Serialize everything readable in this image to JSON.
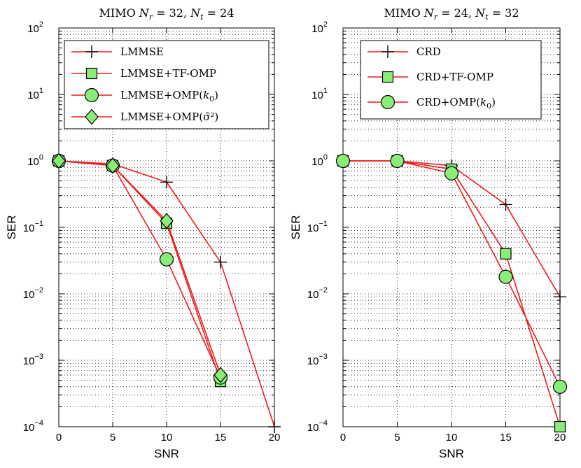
{
  "chart_data": [
    {
      "type": "line",
      "title": "MIMO N_r = 32,  N_t = 24",
      "title_parts": {
        "prefix": "MIMO",
        "nr_label": "N",
        "nr_sub": "r",
        "nr_value": "= 32,",
        "nt_label": "N",
        "nt_sub": "t",
        "nt_value": "= 24"
      },
      "xlabel": "SNR",
      "ylabel": "SER",
      "yscale": "log",
      "xlim": [
        0,
        20
      ],
      "ylim": [
        0.0001,
        100
      ],
      "xticks": [
        0,
        5,
        10,
        15,
        20
      ],
      "yticks": [
        0.0001,
        0.001,
        0.01,
        0.1,
        1,
        10,
        100
      ],
      "ytick_labels": [
        {
          "base": "10",
          "exp": "−4"
        },
        {
          "base": "10",
          "exp": "−3"
        },
        {
          "base": "10",
          "exp": "−2"
        },
        {
          "base": "10",
          "exp": "−1"
        },
        {
          "base": "10",
          "exp": "0"
        },
        {
          "base": "10",
          "exp": "1"
        },
        {
          "base": "10",
          "exp": "2"
        }
      ],
      "grid": true,
      "legend_position": "top",
      "series": [
        {
          "name": "LMMSE",
          "marker": "plus",
          "x": [
            0,
            5,
            10,
            15,
            20
          ],
          "y": [
            1,
            0.9,
            0.48,
            0.03,
            0.0001
          ]
        },
        {
          "name": "LMMSE+TF-OMP",
          "marker": "square",
          "x": [
            0,
            5,
            10,
            15
          ],
          "y": [
            1,
            0.85,
            0.115,
            0.00048
          ]
        },
        {
          "name": "LMMSE+OMP(k_0)",
          "marker": "circle",
          "x": [
            0,
            5,
            10,
            15
          ],
          "y": [
            1,
            0.85,
            0.033,
            0.00055
          ]
        },
        {
          "name": "LMMSE+OMP(σ̃²)",
          "marker": "diamond",
          "x": [
            0,
            5,
            10,
            15
          ],
          "y": [
            1,
            0.85,
            0.125,
            0.0006
          ]
        }
      ]
    },
    {
      "type": "line",
      "title": "MIMO N_r = 24,  N_t = 32",
      "title_parts": {
        "prefix": "MIMO",
        "nr_label": "N",
        "nr_sub": "r",
        "nr_value": "= 24,",
        "nt_label": "N",
        "nt_sub": "t",
        "nt_value": "= 32"
      },
      "xlabel": "SNR",
      "ylabel": "SER",
      "yscale": "log",
      "xlim": [
        0,
        20
      ],
      "ylim": [
        0.0001,
        100
      ],
      "xticks": [
        0,
        5,
        10,
        15,
        20
      ],
      "yticks": [
        0.0001,
        0.001,
        0.01,
        0.1,
        1,
        10,
        100
      ],
      "ytick_labels": [
        {
          "base": "10",
          "exp": "−4"
        },
        {
          "base": "10",
          "exp": "−3"
        },
        {
          "base": "10",
          "exp": "−2"
        },
        {
          "base": "10",
          "exp": "−1"
        },
        {
          "base": "10",
          "exp": "0"
        },
        {
          "base": "10",
          "exp": "1"
        },
        {
          "base": "10",
          "exp": "2"
        }
      ],
      "grid": true,
      "legend_position": "top",
      "series": [
        {
          "name": "CRD",
          "marker": "plus",
          "x": [
            0,
            5,
            10,
            15,
            20
          ],
          "y": [
            1,
            1,
            0.85,
            0.22,
            0.009
          ]
        },
        {
          "name": "CRD+TF-OMP",
          "marker": "square",
          "x": [
            0,
            5,
            10,
            15,
            20
          ],
          "y": [
            1,
            1,
            0.75,
            0.04,
            0.0001
          ]
        },
        {
          "name": "CRD+OMP(k_0)",
          "marker": "circle",
          "x": [
            0,
            5,
            10,
            15,
            20
          ],
          "y": [
            1,
            1,
            0.65,
            0.018,
            0.0004
          ]
        }
      ]
    }
  ]
}
